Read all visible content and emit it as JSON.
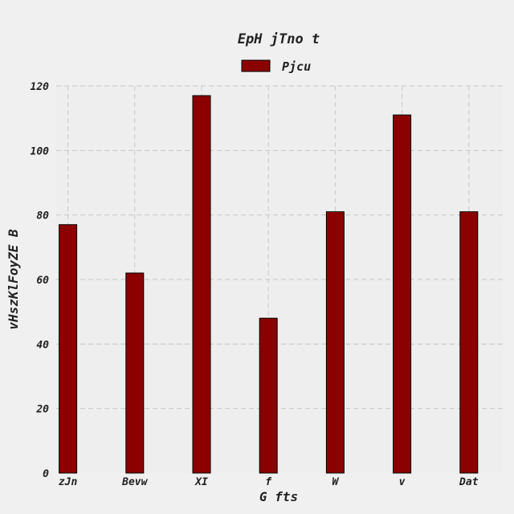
{
  "chart_data": {
    "type": "bar",
    "title": "EpH jTno t",
    "xlabel": "G fts",
    "ylabel": "vHszKlFoyZE B",
    "categories": [
      "zJn",
      "Bevw",
      "XI",
      "f",
      "W",
      "v",
      "Dat"
    ],
    "series": [
      {
        "name": "Pjcu",
        "values": [
          77,
          62,
          117,
          48,
          81,
          111,
          81
        ],
        "color": "#8b0000"
      }
    ],
    "ylim": [
      0,
      120
    ],
    "yticks": [
      0,
      20,
      40,
      60,
      80,
      100,
      120
    ],
    "grid": true,
    "legend_position": "top-center",
    "background_color": "#f0f0f0",
    "plot_background_color": "#eeeeee"
  }
}
